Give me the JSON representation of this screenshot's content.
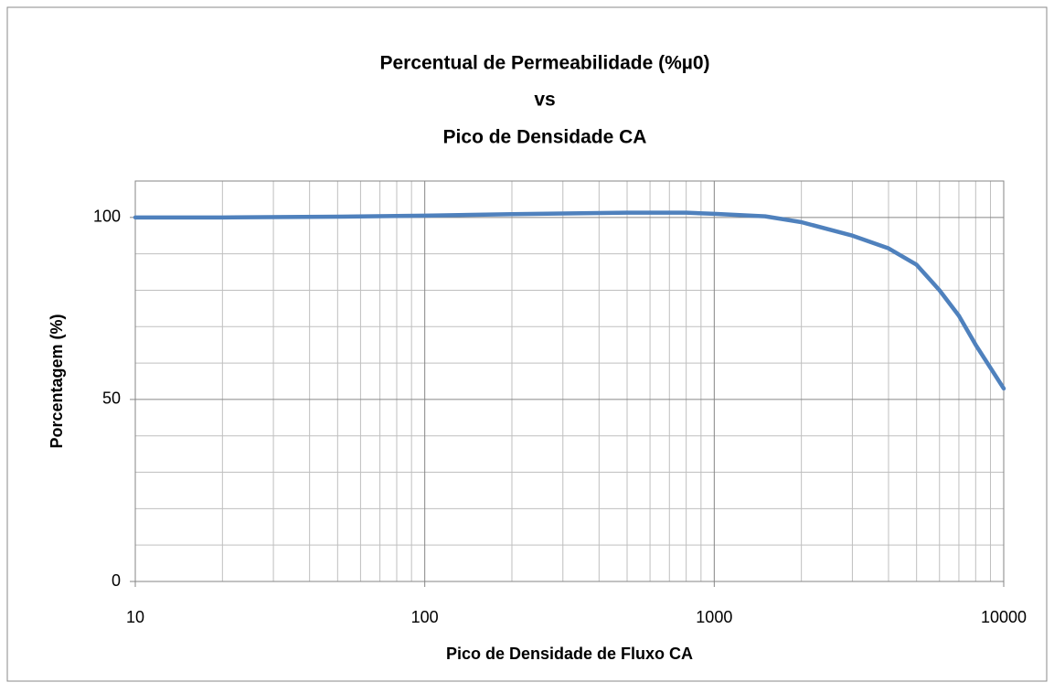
{
  "chart_data": {
    "type": "line",
    "title": [
      "Percentual de Permeabilidade (%µ0)",
      "vs",
      "Pico de Densidade CA"
    ],
    "xlabel": "Pico de Densidade de Fluxo CA",
    "ylabel": "Porcentagem (%)",
    "x": [
      10,
      20,
      50,
      100,
      200,
      500,
      800,
      1000,
      1500,
      2000,
      3000,
      4000,
      5000,
      6000,
      7000,
      8000,
      10000
    ],
    "series": [
      {
        "color": "#4f81bd",
        "values": [
          100,
          100,
          100.2,
          100.5,
          100.9,
          101.3,
          101.3,
          101,
          100.3,
          98.7,
          95,
          91.5,
          87,
          80,
          73,
          65,
          53
        ]
      }
    ],
    "xscale": "log",
    "xlim": [
      10,
      10000
    ],
    "xticks": [
      10,
      100,
      1000,
      10000
    ],
    "ylim": [
      0,
      110
    ],
    "yticks": [
      0,
      50,
      100
    ],
    "yminor": [
      10,
      20,
      30,
      40,
      60,
      70,
      80,
      90
    ],
    "grid": true
  }
}
